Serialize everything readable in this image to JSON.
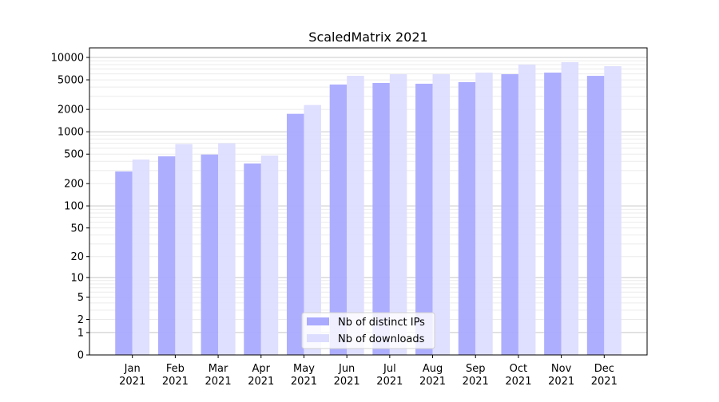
{
  "chart_data": {
    "type": "bar",
    "title": "ScaledMatrix 2021",
    "xlabel": "",
    "ylabel": "",
    "yscale": "log10(y+1)",
    "ylim": [
      0,
      13450
    ],
    "yticks": [
      0,
      1,
      2,
      5,
      10,
      20,
      50,
      100,
      200,
      500,
      1000,
      2000,
      5000,
      10000
    ],
    "grid": "major and minor horizontal",
    "legend_position": "bottom-center",
    "categories": [
      "Jan\n2021",
      "Feb\n2021",
      "Mar\n2021",
      "Apr\n2021",
      "May\n2021",
      "Jun\n2021",
      "Jul\n2021",
      "Aug\n2021",
      "Sep\n2021",
      "Oct\n2021",
      "Nov\n2021",
      "Dec\n2021"
    ],
    "series": [
      {
        "name": "Nb of distinct IPs",
        "color": "#aaaaff",
        "values": [
          292,
          467,
          494,
          374,
          1745,
          4320,
          4540,
          4430,
          4650,
          5950,
          6250,
          5660
        ]
      },
      {
        "name": "Nb of downloads",
        "color": "#ddddff",
        "values": [
          423,
          682,
          699,
          479,
          2290,
          5660,
          5950,
          5950,
          6250,
          8010,
          8630,
          7620
        ]
      }
    ]
  }
}
